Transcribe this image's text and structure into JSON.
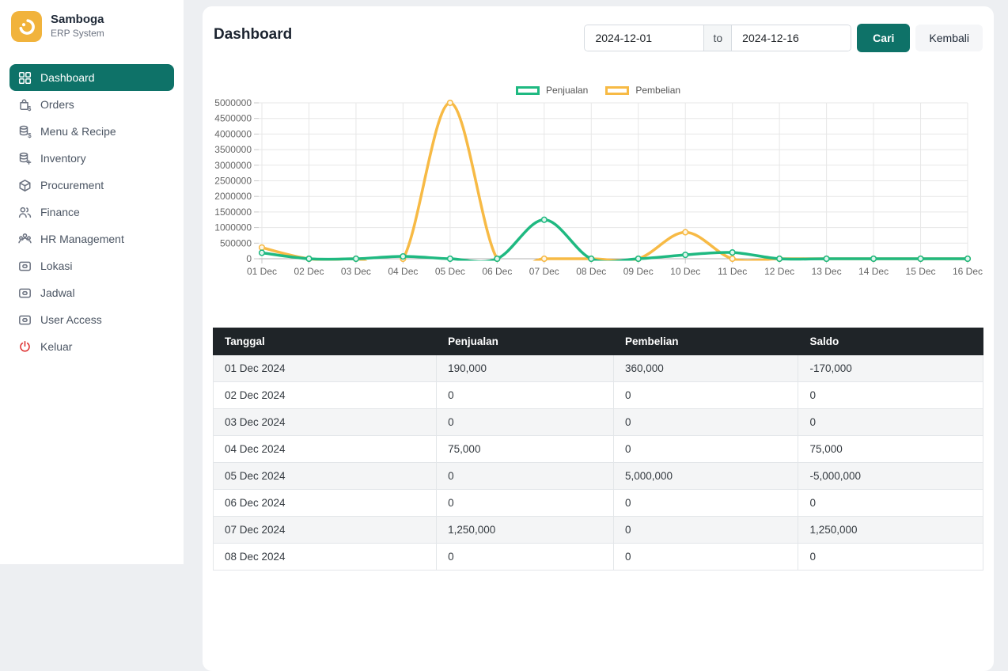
{
  "app": {
    "name": "Samboga",
    "subtitle": "ERP System"
  },
  "colors": {
    "accent_teal": "#0e7268",
    "logo_yellow": "#f1b33c",
    "danger_red": "#dc2626",
    "chart_green": "#1fb981",
    "chart_orange": "#f7ba45",
    "table_header_bg": "#1f2428"
  },
  "sidebar": {
    "items": [
      {
        "label": "Dashboard",
        "icon": "grid-icon",
        "slug": "dashboard",
        "active": true
      },
      {
        "label": "Orders",
        "icon": "orders-bag-icon",
        "slug": "orders"
      },
      {
        "label": "Menu & Recipe",
        "icon": "database-dollar-icon",
        "slug": "menu-recipe"
      },
      {
        "label": "Inventory",
        "icon": "database-plus-icon",
        "slug": "inventory"
      },
      {
        "label": "Procurement",
        "icon": "box-icon",
        "slug": "procurement"
      },
      {
        "label": "Finance",
        "icon": "users-icon",
        "slug": "finance"
      },
      {
        "label": "HR Management",
        "icon": "users-group-icon",
        "slug": "hr-management"
      },
      {
        "label": "Lokasi",
        "icon": "card-icon",
        "slug": "lokasi"
      },
      {
        "label": "Jadwal",
        "icon": "card-icon",
        "slug": "jadwal"
      },
      {
        "label": "User Access",
        "icon": "card-icon",
        "slug": "user-access"
      },
      {
        "label": "Keluar",
        "icon": "power-icon",
        "slug": "keluar",
        "danger": true
      }
    ]
  },
  "header": {
    "title": "Dashboard",
    "date_from": "2024-12-01",
    "date_separator": "to",
    "date_to": "2024-12-16",
    "search_label": "Cari",
    "back_label": "Kembali"
  },
  "chart_data": {
    "type": "line",
    "title": "",
    "x": [
      "01 Dec",
      "02 Dec",
      "03 Dec",
      "04 Dec",
      "05 Dec",
      "06 Dec",
      "07 Dec",
      "08 Dec",
      "09 Dec",
      "10 Dec",
      "11 Dec",
      "12 Dec",
      "13 Dec",
      "14 Dec",
      "15 Dec",
      "16 Dec"
    ],
    "series": [
      {
        "name": "Penjualan",
        "color": "#1fb981",
        "values": [
          190000,
          0,
          0,
          75000,
          0,
          0,
          1250000,
          0,
          0,
          125000,
          200000,
          0,
          0,
          0,
          0,
          0
        ]
      },
      {
        "name": "Pembelian",
        "color": "#f7ba45",
        "values": [
          360000,
          0,
          0,
          0,
          5000000,
          0,
          0,
          0,
          0,
          850000,
          0,
          0,
          0,
          0,
          0,
          0
        ]
      }
    ],
    "ylim": [
      0,
      5000000
    ],
    "ytick_step": 500000,
    "grid": true,
    "legend_position": "top"
  },
  "table": {
    "columns": [
      "Tanggal",
      "Penjualan",
      "Pembelian",
      "Saldo"
    ],
    "rows": [
      [
        "01 Dec 2024",
        "190,000",
        "360,000",
        "-170,000"
      ],
      [
        "02 Dec 2024",
        "0",
        "0",
        "0"
      ],
      [
        "03 Dec 2024",
        "0",
        "0",
        "0"
      ],
      [
        "04 Dec 2024",
        "75,000",
        "0",
        "75,000"
      ],
      [
        "05 Dec 2024",
        "0",
        "5,000,000",
        "-5,000,000"
      ],
      [
        "06 Dec 2024",
        "0",
        "0",
        "0"
      ],
      [
        "07 Dec 2024",
        "1,250,000",
        "0",
        "1,250,000"
      ],
      [
        "08 Dec 2024",
        "0",
        "0",
        "0"
      ]
    ]
  }
}
